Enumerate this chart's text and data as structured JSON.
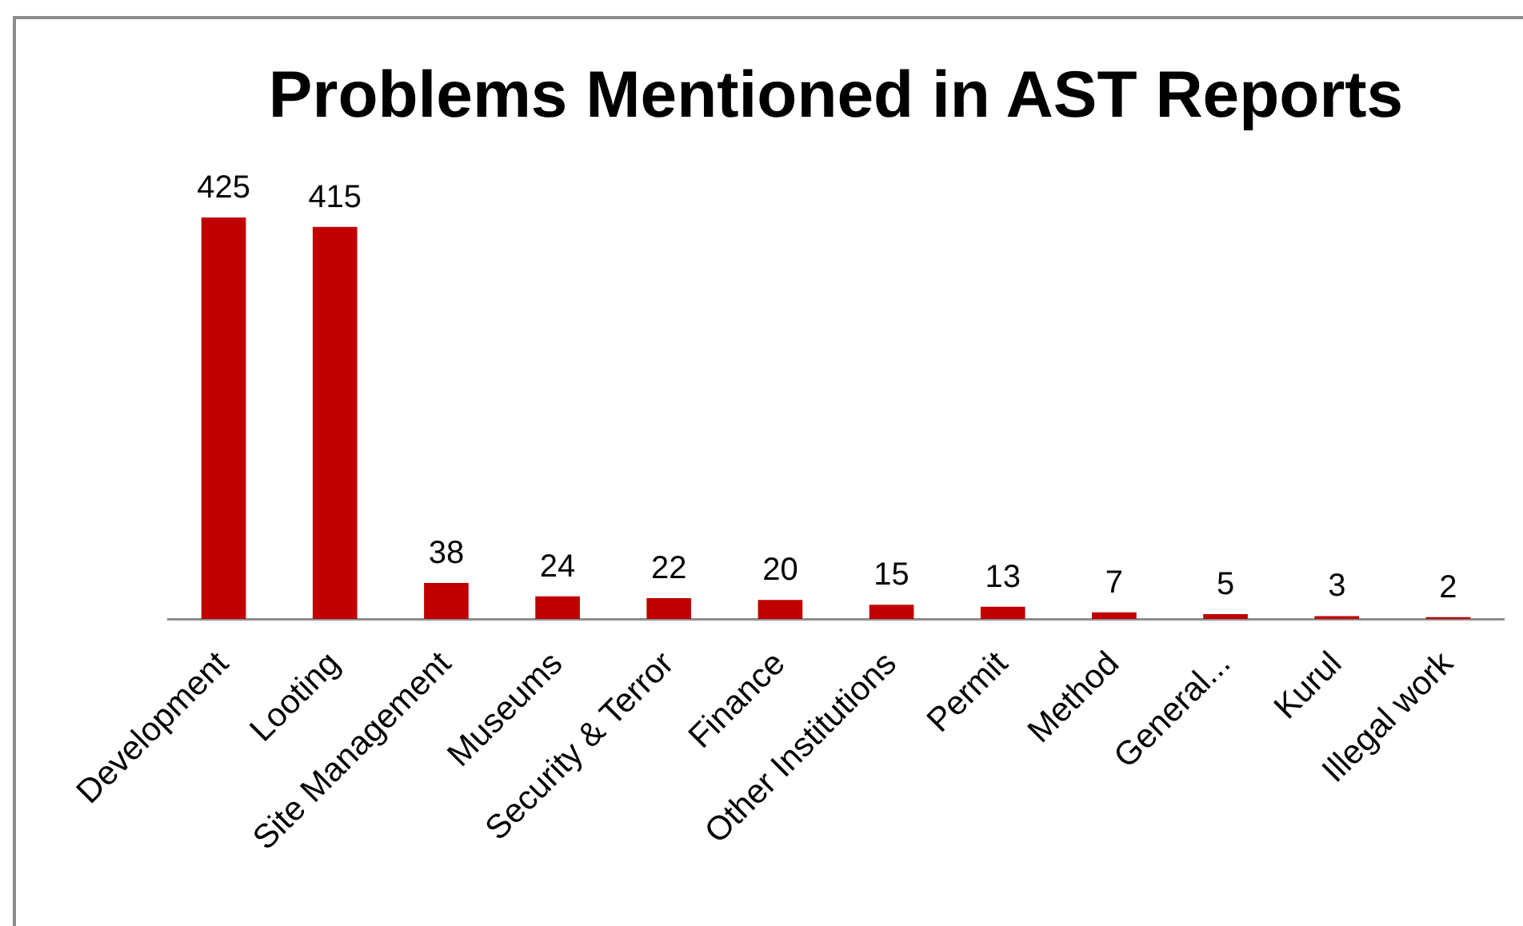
{
  "chart_data": {
    "type": "bar",
    "title": "Problems Mentioned in AST Reports",
    "categories": [
      "Development",
      "Looting",
      "Site Management",
      "Museums",
      "Security & Terror",
      "Finance",
      "Other Institutions",
      "Permit",
      "Method",
      "General...",
      "Kurul",
      "Illegal work"
    ],
    "values": [
      425,
      415,
      38,
      24,
      22,
      20,
      15,
      13,
      7,
      5,
      3,
      2
    ],
    "color": "#c00000",
    "data_labels": true,
    "grid": false
  }
}
